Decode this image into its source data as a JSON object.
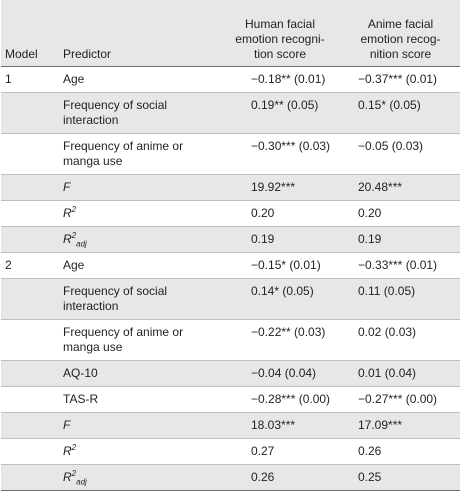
{
  "header": {
    "model": "Model",
    "predictor": "Predictor",
    "human_line1": "Human facial",
    "human_line2": "emotion recogni-",
    "human_line3": "tion score",
    "anime_line1": "Anime facial",
    "anime_line2": "emotion recog-",
    "anime_line3": "nition score"
  },
  "rows": [
    {
      "model": "1",
      "predictor": "Age",
      "human": "−0.18** (0.01)",
      "anime": "−0.37*** (0.01)"
    },
    {
      "model": "",
      "predictor_l1": "Frequency of social",
      "predictor_l2": "interaction",
      "human": "0.19** (0.05)",
      "anime": "0.15* (0.05)"
    },
    {
      "model": "",
      "predictor_l1": "Frequency of anime or",
      "predictor_l2": "manga use",
      "human": "−0.30*** (0.03)",
      "anime": "−0.05 (0.03)"
    },
    {
      "model": "",
      "predictor": "F",
      "human": "19.92***",
      "anime": "20.48***"
    },
    {
      "model": "",
      "predictor_base": "R",
      "predictor_sup": "2",
      "human": "0.20",
      "anime": "0.20"
    },
    {
      "model": "",
      "predictor_base": "R",
      "predictor_sup": "2",
      "predictor_sub": "adj",
      "human": "0.19",
      "anime": "0.19"
    },
    {
      "model": "2",
      "predictor": "Age",
      "human": "−0.15* (0.01)",
      "anime": "−0.33*** (0.01)"
    },
    {
      "model": "",
      "predictor_l1": "Frequency of social",
      "predictor_l2": "interaction",
      "human": "0.14* (0.05)",
      "anime": "0.11 (0.05)"
    },
    {
      "model": "",
      "predictor_l1": "Frequency of anime or",
      "predictor_l2": "manga use",
      "human": "−0.22** (0.03)",
      "anime": "0.02 (0.03)"
    },
    {
      "model": "",
      "predictor": "AQ-10",
      "human": "−0.04 (0.04)",
      "anime": "0.01 (0.04)"
    },
    {
      "model": "",
      "predictor": "TAS-R",
      "human": "−0.28*** (0.00)",
      "anime": "−0.27*** (0.00)"
    },
    {
      "model": "",
      "predictor": "F",
      "human": "18.03***",
      "anime": "17.09***"
    },
    {
      "model": "",
      "predictor_base": "R",
      "predictor_sup": "2",
      "human": "0.27",
      "anime": "0.26"
    },
    {
      "model": "",
      "predictor_base": "R",
      "predictor_sup": "2",
      "predictor_sub": "adj",
      "human": "0.26",
      "anime": "0.25"
    }
  ],
  "colors": {
    "shade": "#e6e7e8",
    "rule": "#bcbec0",
    "text": "#231f20"
  }
}
